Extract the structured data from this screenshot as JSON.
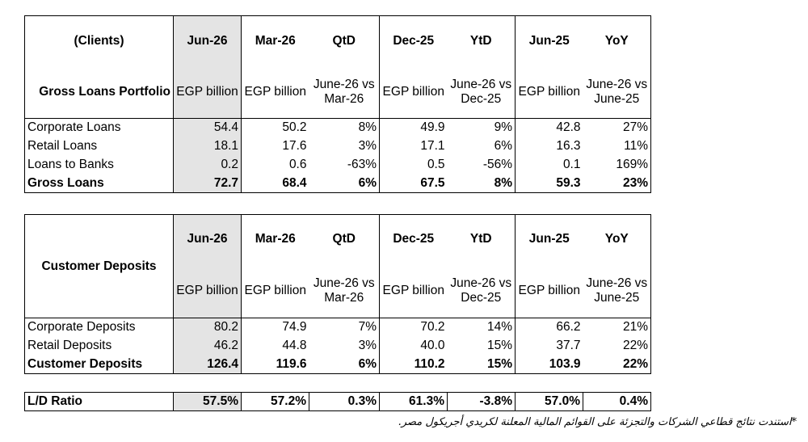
{
  "loans": {
    "header": {
      "label": "(Clients)",
      "cols": [
        "Jun-26",
        "Mar-26",
        "QtD",
        "Dec-25",
        "YtD",
        "Jun-25",
        "YoY"
      ]
    },
    "subheader": {
      "label": "Gross Loans Portfolio",
      "cols": [
        "EGP billion",
        "EGP billion",
        "June-26 vs Mar-26",
        "EGP billion",
        "June-26 vs Dec-25",
        "EGP billion",
        "June-26 vs June-25"
      ]
    },
    "rows": [
      {
        "label": "Corporate Loans",
        "values": [
          "54.4",
          "50.2",
          "8%",
          "49.9",
          "9%",
          "42.8",
          "27%"
        ]
      },
      {
        "label": "Retail Loans",
        "values": [
          "18.1",
          "17.6",
          "3%",
          "17.1",
          "6%",
          "16.3",
          "11%"
        ]
      },
      {
        "label": "Loans to Banks",
        "values": [
          "0.2",
          "0.6",
          "-63%",
          "0.5",
          "-56%",
          "0.1",
          "169%"
        ]
      },
      {
        "label": "Gross Loans",
        "values": [
          "72.7",
          "68.4",
          "6%",
          "67.5",
          "8%",
          "59.3",
          "23%"
        ]
      }
    ]
  },
  "deposits": {
    "header": {
      "label": "Customer Deposits",
      "cols": [
        "Jun-26",
        "Mar-26",
        "QtD",
        "Dec-25",
        "YtD",
        "Jun-25",
        "YoY"
      ]
    },
    "subheader": {
      "cols": [
        "EGP billion",
        "EGP billion",
        "June-26 vs Mar-26",
        "EGP billion",
        "June-26 vs Dec-25",
        "EGP billion",
        "June-26 vs June-25"
      ]
    },
    "rows": [
      {
        "label": "Corporate Deposits",
        "values": [
          "80.2",
          "74.9",
          "7%",
          "70.2",
          "14%",
          "66.2",
          "21%"
        ]
      },
      {
        "label": "Retail Deposits",
        "values": [
          "46.2",
          "44.8",
          "3%",
          "40.0",
          "15%",
          "37.7",
          "22%"
        ]
      },
      {
        "label": "Customer Deposits",
        "values": [
          "126.4",
          "119.6",
          "6%",
          "110.2",
          "15%",
          "103.9",
          "22%"
        ]
      }
    ]
  },
  "ld_ratio": {
    "label": "L/D Ratio",
    "values": [
      "57.5%",
      "57.2%",
      "0.3%",
      "61.3%",
      "-3.8%",
      "57.0%",
      "0.4%"
    ]
  },
  "footnote": "*استندت نتائج قطاعي الشركات والتجزئة على القوائم المالية المعلنة لكريدي أجريكول مصر."
}
